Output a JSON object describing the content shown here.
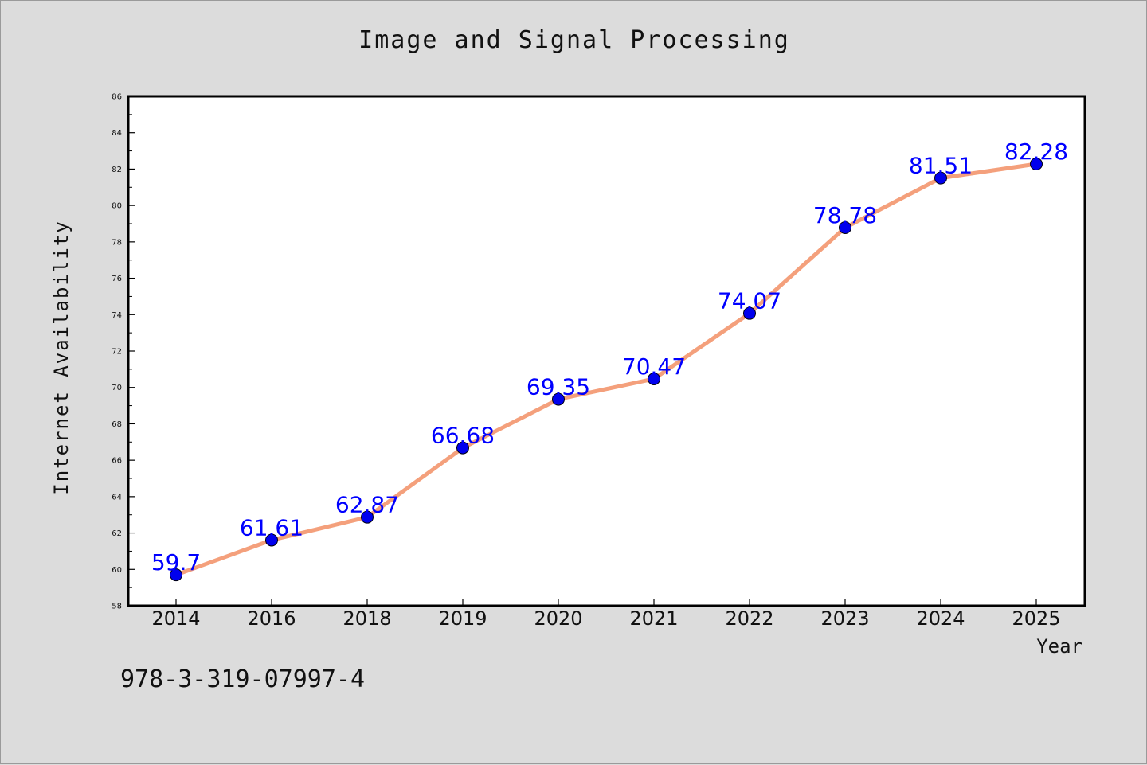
{
  "chart_data": {
    "type": "line",
    "title": "Image and Signal Processing",
    "xlabel": "Year",
    "ylabel": "Internet Availability",
    "categories": [
      "2014",
      "2016",
      "2018",
      "2019",
      "2020",
      "2021",
      "2022",
      "2023",
      "2024",
      "2025"
    ],
    "series": [
      {
        "values": [
          59.7,
          61.61,
          62.87,
          66.68,
          69.35,
          70.47,
          74.07,
          78.78,
          81.51,
          82.28
        ],
        "labels": [
          "59.7",
          "61.61",
          "62.87",
          "66.68",
          "69.35",
          "70.47",
          "74.07",
          "78.78",
          "81.51",
          "82.28"
        ]
      }
    ],
    "ylim": [
      58,
      86
    ],
    "yticks": [
      58,
      60,
      62,
      64,
      66,
      68,
      70,
      72,
      74,
      76,
      78,
      80,
      82,
      84,
      86
    ],
    "grid": false,
    "colors": {
      "line": "#f4a07c",
      "marker": "#0000ee",
      "label": "#0000ff",
      "frame": "#000000",
      "plot_bg": "#ffffff"
    }
  },
  "annotation": "978-3-319-07997-4"
}
